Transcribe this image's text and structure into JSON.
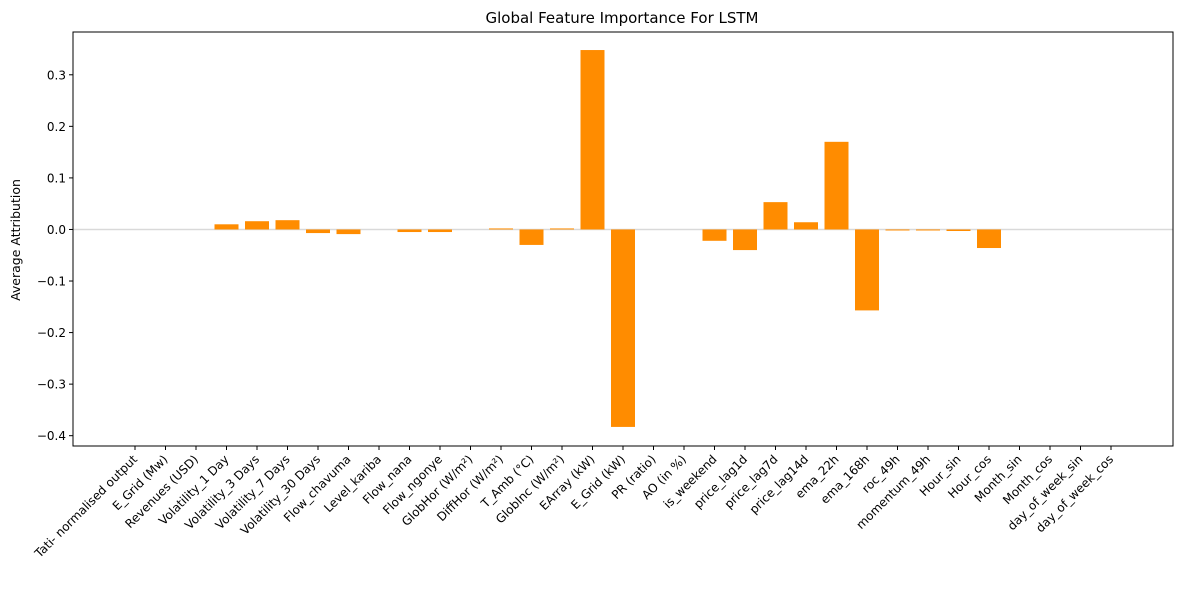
{
  "chart_data": {
    "type": "bar",
    "title": "Global Feature Importance For LSTM",
    "xlabel": "",
    "ylabel": "Average Attribution",
    "ylim": [
      -0.42,
      0.383
    ],
    "yticks": [
      -0.4,
      -0.3,
      -0.2,
      -0.1,
      0.0,
      0.1,
      0.2,
      0.3
    ],
    "ytick_labels": [
      "−0.4",
      "−0.3",
      "−0.2",
      "−0.1",
      "0.0",
      "0.1",
      "0.2",
      "0.3"
    ],
    "bar_color": "#ff8c00",
    "zero_line_color": "#d9d9d9",
    "grid": false,
    "categories": [
      "Tati- normalised output",
      "E_Grid (Mw)",
      "Revenues (USD)",
      "Volatility_1 Day",
      "Volatility_3 Days",
      "Volatility_7 Days",
      "Volatility_30 Days",
      "Flow_chavuma",
      "Level_kariba",
      "Flow_nana",
      "Flow_ngonye",
      "GlobHor (W/m²)",
      "DiffHor (W/m²)",
      "T_Amb (°C)",
      "GlobInc (W/m²)",
      "EArray (kW)",
      "E_Grid (kW)",
      "PR (ratio)",
      "AO (in %)",
      "is_weekend",
      "price_lag1d",
      "price_lag7d",
      "price_lag14d",
      "ema_22h",
      "ema_168h",
      "roc_49h",
      "momentum_49h",
      "Hour_sin",
      "Hour_cos",
      "Month_sin",
      "Month_cos",
      "day_of_week_sin",
      "day_of_week_cos"
    ],
    "values": [
      0.0,
      0.0,
      0.0,
      0.01,
      0.016,
      0.018,
      -0.007,
      -0.009,
      0.0,
      -0.005,
      -0.005,
      0.0,
      0.002,
      -0.03,
      0.002,
      0.348,
      -0.383,
      0.0,
      0.0,
      -0.022,
      -0.04,
      0.053,
      0.014,
      0.17,
      -0.157,
      -0.002,
      -0.002,
      -0.003,
      -0.036,
      0.0,
      0.0,
      0.0,
      0.0
    ]
  }
}
